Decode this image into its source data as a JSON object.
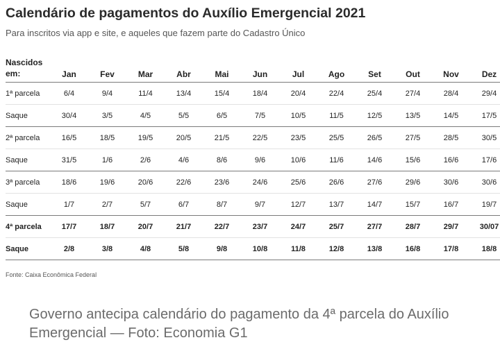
{
  "title": "Calendário de pagamentos do Auxílio Emergencial 2021",
  "subtitle": "Para inscritos via app e site, e aqueles que fazem parte do Cadastro Único",
  "table": {
    "header_label_line1": "Nascidos",
    "header_label_line2": "em:",
    "months": [
      "Jan",
      "Fev",
      "Mar",
      "Abr",
      "Mai",
      "Jun",
      "Jul",
      "Ago",
      "Set",
      "Out",
      "Nov",
      "Dez"
    ],
    "rows": [
      {
        "label": "1ª parcela",
        "values": [
          "6/4",
          "9/4",
          "11/4",
          "13/4",
          "15/4",
          "18/4",
          "20/4",
          "22/4",
          "25/4",
          "27/4",
          "28/4",
          "29/4"
        ]
      },
      {
        "label": "Saque",
        "values": [
          "30/4",
          "3/5",
          "4/5",
          "5/5",
          "6/5",
          "7/5",
          "10/5",
          "11/5",
          "12/5",
          "13/5",
          "14/5",
          "17/5"
        ]
      },
      {
        "label": "2ª parcela",
        "values": [
          "16/5",
          "18/5",
          "19/5",
          "20/5",
          "21/5",
          "22/5",
          "23/5",
          "25/5",
          "26/5",
          "27/5",
          "28/5",
          "30/5"
        ]
      },
      {
        "label": "Saque",
        "values": [
          "31/5",
          "1/6",
          "2/6",
          "4/6",
          "8/6",
          "9/6",
          "10/6",
          "11/6",
          "14/6",
          "15/6",
          "16/6",
          "17/6"
        ]
      },
      {
        "label": "3ª parcela",
        "values": [
          "18/6",
          "19/6",
          "20/6",
          "22/6",
          "23/6",
          "24/6",
          "25/6",
          "26/6",
          "27/6",
          "29/6",
          "30/6",
          "30/6"
        ]
      },
      {
        "label": "Saque",
        "values": [
          "1/7",
          "2/7",
          "5/7",
          "6/7",
          "8/7",
          "9/7",
          "12/7",
          "13/7",
          "14/7",
          "15/7",
          "16/7",
          "19/7"
        ]
      },
      {
        "label": "4ª parcela",
        "values": [
          "17/7",
          "18/7",
          "20/7",
          "21/7",
          "22/7",
          "23/7",
          "24/7",
          "25/7",
          "27/7",
          "28/7",
          "29/7",
          "30/07"
        ]
      },
      {
        "label": "Saque",
        "values": [
          "2/8",
          "3/8",
          "4/8",
          "5/8",
          "9/8",
          "10/8",
          "11/8",
          "12/8",
          "13/8",
          "16/8",
          "17/8",
          "18/8"
        ]
      }
    ]
  },
  "source": "Fonte: Caixa Econômica Federal",
  "caption": "Governo antecipa calendário do pagamento da 4ª parcela do Auxílio Emergencial — Foto: Economia G1"
}
